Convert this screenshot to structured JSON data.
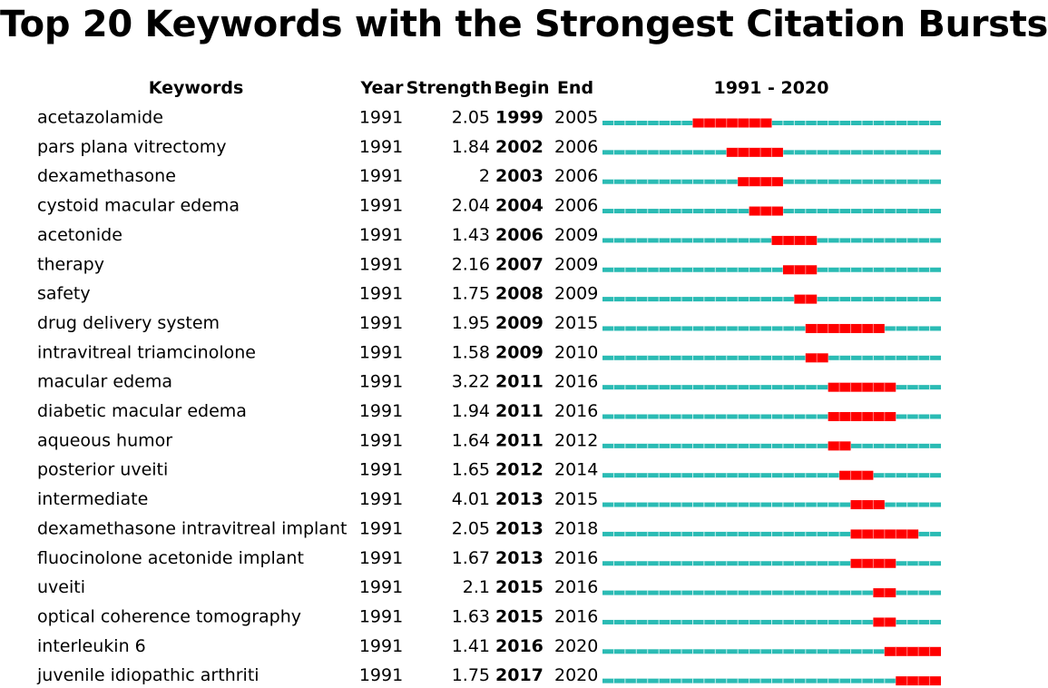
{
  "title": "Top 20 Keywords with the Strongest Citation Bursts",
  "headers": {
    "keywords": "Keywords",
    "year": "Year",
    "strength": "Strength",
    "begin": "Begin",
    "end": "End",
    "range": "1991 - 2020"
  },
  "colors": {
    "timeline": "#2ABBB4",
    "burst": "#FF0000",
    "tick": "#C8EEEC"
  },
  "chart_data": {
    "type": "table",
    "timeline_start": 1991,
    "timeline_end": 2020,
    "rows": [
      {
        "keyword": "acetazolamide",
        "year": 1991,
        "strength": 2.05,
        "begin": 1999,
        "end": 2005
      },
      {
        "keyword": "pars plana vitrectomy",
        "year": 1991,
        "strength": 1.84,
        "begin": 2002,
        "end": 2006
      },
      {
        "keyword": "dexamethasone",
        "year": 1991,
        "strength": 2,
        "begin": 2003,
        "end": 2006
      },
      {
        "keyword": "cystoid macular edema",
        "year": 1991,
        "strength": 2.04,
        "begin": 2004,
        "end": 2006
      },
      {
        "keyword": "acetonide",
        "year": 1991,
        "strength": 1.43,
        "begin": 2006,
        "end": 2009
      },
      {
        "keyword": "therapy",
        "year": 1991,
        "strength": 2.16,
        "begin": 2007,
        "end": 2009
      },
      {
        "keyword": "safety",
        "year": 1991,
        "strength": 1.75,
        "begin": 2008,
        "end": 2009
      },
      {
        "keyword": "drug delivery system",
        "year": 1991,
        "strength": 1.95,
        "begin": 2009,
        "end": 2015
      },
      {
        "keyword": "intravitreal triamcinolone",
        "year": 1991,
        "strength": 1.58,
        "begin": 2009,
        "end": 2010
      },
      {
        "keyword": "macular edema",
        "year": 1991,
        "strength": 3.22,
        "begin": 2011,
        "end": 2016
      },
      {
        "keyword": "diabetic macular edema",
        "year": 1991,
        "strength": 1.94,
        "begin": 2011,
        "end": 2016
      },
      {
        "keyword": "aqueous humor",
        "year": 1991,
        "strength": 1.64,
        "begin": 2011,
        "end": 2012
      },
      {
        "keyword": "posterior uveiti",
        "year": 1991,
        "strength": 1.65,
        "begin": 2012,
        "end": 2014
      },
      {
        "keyword": "intermediate",
        "year": 1991,
        "strength": 4.01,
        "begin": 2013,
        "end": 2015
      },
      {
        "keyword": "dexamethasone intravitreal implant",
        "year": 1991,
        "strength": 2.05,
        "begin": 2013,
        "end": 2018
      },
      {
        "keyword": "fluocinolone acetonide implant",
        "year": 1991,
        "strength": 1.67,
        "begin": 2013,
        "end": 2016
      },
      {
        "keyword": "uveiti",
        "year": 1991,
        "strength": 2.1,
        "begin": 2015,
        "end": 2016
      },
      {
        "keyword": "optical coherence tomography",
        "year": 1991,
        "strength": 1.63,
        "begin": 2015,
        "end": 2016
      },
      {
        "keyword": "interleukin 6",
        "year": 1991,
        "strength": 1.41,
        "begin": 2016,
        "end": 2020
      },
      {
        "keyword": "juvenile idiopathic arthriti",
        "year": 1991,
        "strength": 1.75,
        "begin": 2017,
        "end": 2020
      }
    ]
  }
}
